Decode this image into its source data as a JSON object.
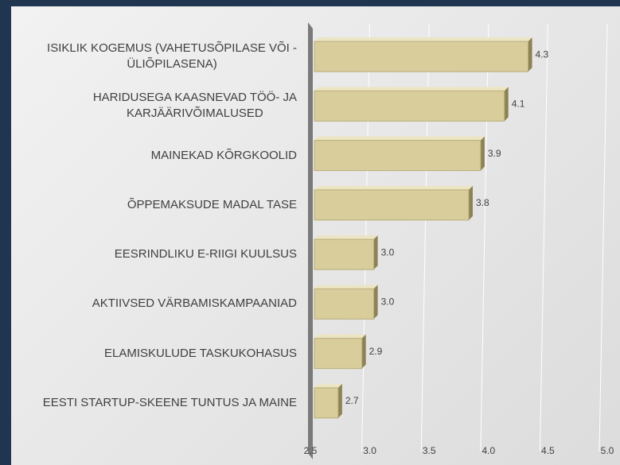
{
  "chart_data": {
    "type": "barh",
    "categories": [
      "ISIKLIK KOGEMUS (VAHETUSÕPILASE VÕI -\nÜLIÕPILASENA)",
      "HARIDUSEGA KAASNEVAD TÖÖ- JA\nKARJÄÄRIVÕIMALUSED",
      "MAINEKAD KÕRGKOOLID",
      "ÕPPEMAKSUDE MADAL TASE",
      "EESRINDLIKU E-RIIGI KUULSUS",
      "AKTIIVSED VÄRBAMISKAMPAANIAD",
      "ELAMISKULUDE TASKUKOHASUS",
      "EESTI STARTUP-SKEENE TUNTUS JA MAINE"
    ],
    "values": [
      4.3,
      4.1,
      3.9,
      3.8,
      3.0,
      3.0,
      2.9,
      2.7
    ],
    "value_labels": [
      "4.3",
      "4.1",
      "3.9",
      "3.8",
      "3.0",
      "3.0",
      "2.9",
      "2.7"
    ],
    "color": "#d8cd9b",
    "xlim": [
      2.5,
      5.0
    ],
    "xticks": [
      2.5,
      {
        "value": 3,
        "label": "3.0"
      },
      3.5,
      {
        "value": 4,
        "label": "4.0"
      },
      4.5,
      {
        "value": 5,
        "label": "5.0"
      }
    ],
    "grid": true
  }
}
